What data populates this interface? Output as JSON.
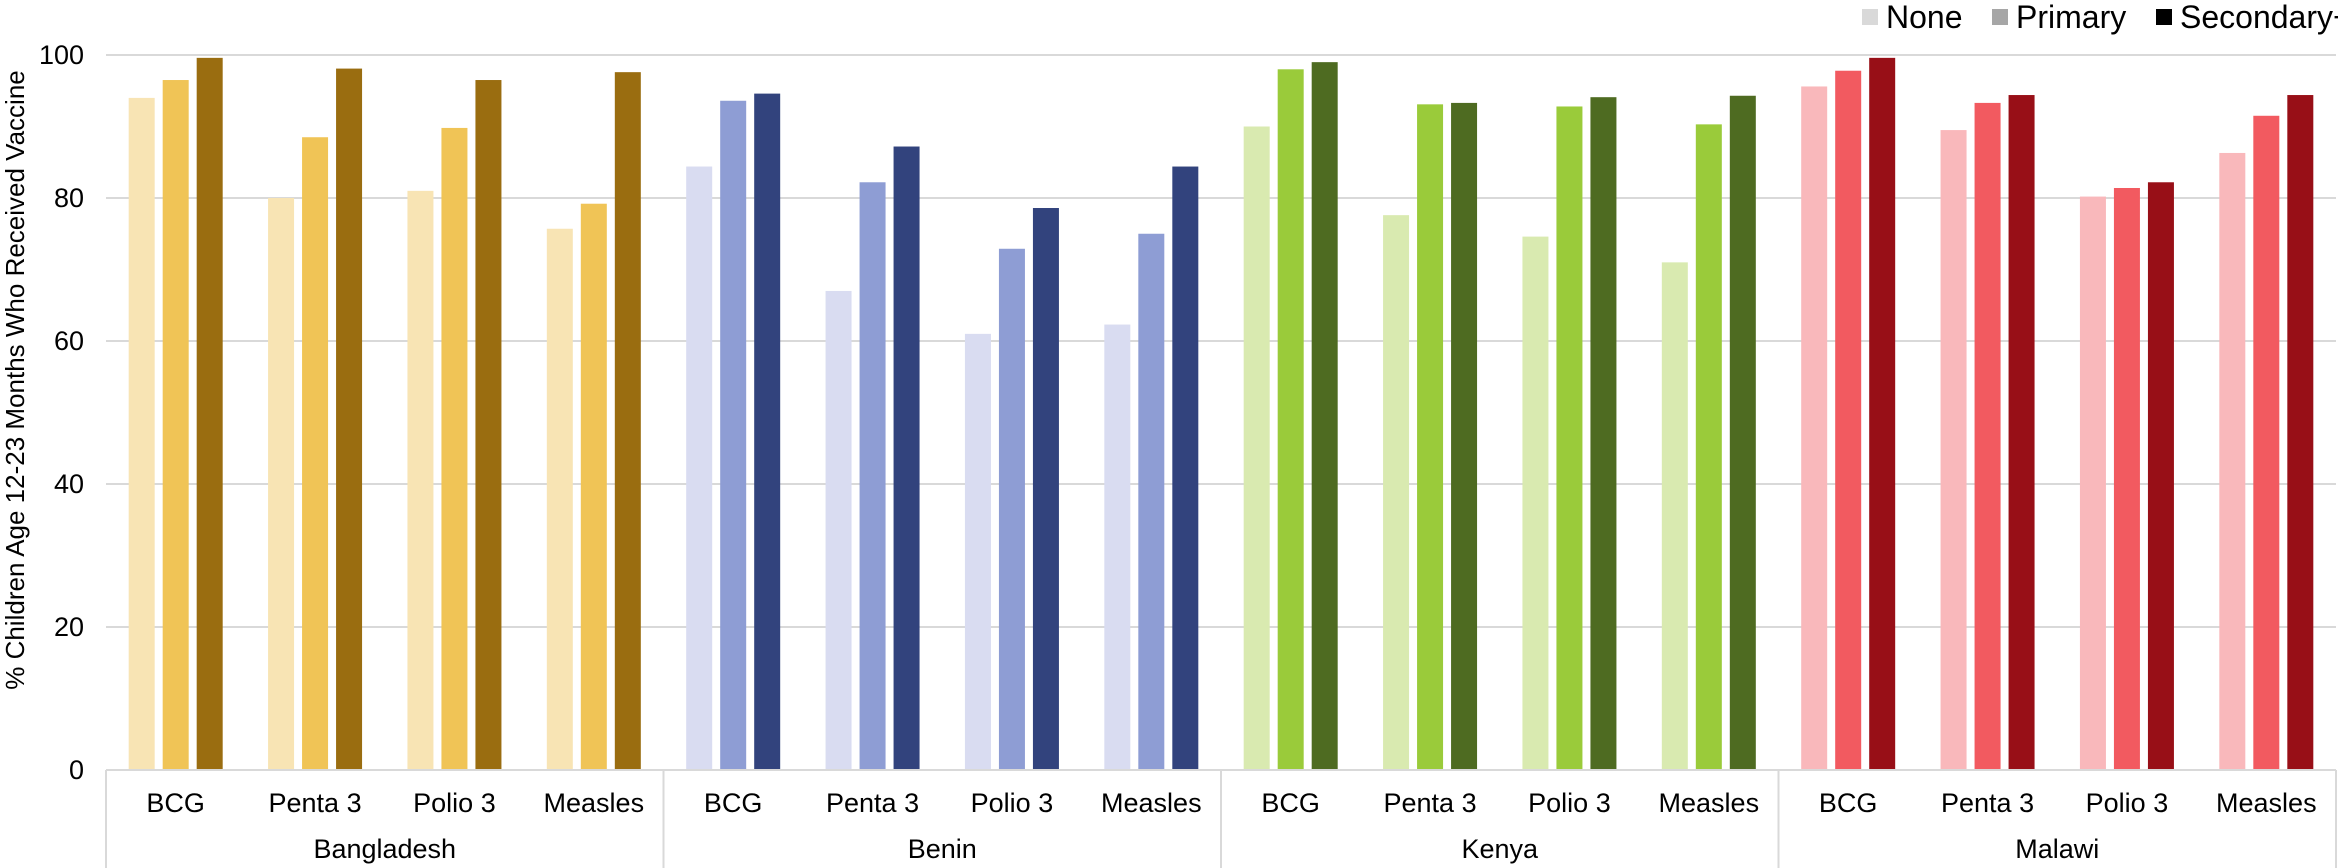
{
  "chart_data": {
    "type": "bar",
    "ylabel": "% Children Age 12-23 Months Who Received Vaccine",
    "ylim": [
      0,
      100
    ],
    "yticks": [
      0,
      20,
      40,
      60,
      80,
      100
    ],
    "grid": true,
    "legend_position": "top-right",
    "legend": [
      "None",
      "Primary",
      "Secondary+"
    ],
    "legend_colors": [
      "#d9d9d9",
      "#a6a6a6",
      "#000000"
    ],
    "groups": [
      {
        "name": "Bangladesh",
        "colors": [
          "#f8e4b4",
          "#f0c456",
          "#9a6d10"
        ],
        "categories": [
          "BCG",
          "Penta 3",
          "Polio 3",
          "Measles"
        ],
        "series": [
          {
            "name": "None",
            "values": [
              94,
              80,
              81,
              75.7
            ]
          },
          {
            "name": "Primary",
            "values": [
              96.5,
              88.5,
              89.8,
              79.2
            ]
          },
          {
            "name": "Secondary+",
            "values": [
              99.6,
              98.1,
              96.5,
              97.6
            ]
          }
        ]
      },
      {
        "name": "Benin",
        "colors": [
          "#d9dcf1",
          "#8e9dd4",
          "#32437d"
        ],
        "categories": [
          "BCG",
          "Penta 3",
          "Polio 3",
          "Measles"
        ],
        "series": [
          {
            "name": "None",
            "values": [
              84.4,
              67,
              61,
              62.3
            ]
          },
          {
            "name": "Primary",
            "values": [
              93.6,
              82.2,
              72.9,
              75
            ]
          },
          {
            "name": "Secondary+",
            "values": [
              94.6,
              87.2,
              78.6,
              84.4
            ]
          }
        ]
      },
      {
        "name": "Kenya",
        "colors": [
          "#d9eab0",
          "#9acb3a",
          "#4e6b21"
        ],
        "categories": [
          "BCG",
          "Penta 3",
          "Polio 3",
          "Measles"
        ],
        "series": [
          {
            "name": "None",
            "values": [
              90,
              77.6,
              74.6,
              71
            ]
          },
          {
            "name": "Primary",
            "values": [
              98,
              93.1,
              92.8,
              90.3
            ]
          },
          {
            "name": "Secondary+",
            "values": [
              99,
              93.3,
              94.1,
              94.3
            ]
          }
        ]
      },
      {
        "name": "Malawi",
        "colors": [
          "#f9b8bb",
          "#f25a60",
          "#980f17"
        ],
        "categories": [
          "BCG",
          "Penta 3",
          "Polio 3",
          "Measles"
        ],
        "series": [
          {
            "name": "None",
            "values": [
              95.6,
              89.5,
              80.2,
              86.3
            ]
          },
          {
            "name": "Primary",
            "values": [
              97.8,
              93.3,
              81.4,
              91.5
            ]
          },
          {
            "name": "Secondary+",
            "values": [
              99.6,
              94.4,
              82.2,
              94.4
            ]
          }
        ]
      }
    ]
  }
}
